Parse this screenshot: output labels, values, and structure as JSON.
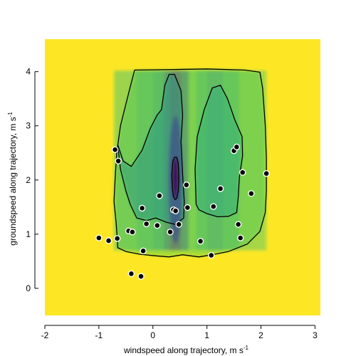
{
  "chart_data": {
    "type": "heatmap",
    "title": "",
    "xlabel": "windspeed along trajectory, m s",
    "xlabel_sup": "-1",
    "ylabel": "groundspeed along trajectory, m s",
    "ylabel_sup": "-1",
    "xlim": [
      -2,
      3.1
    ],
    "ylim": [
      -0.5,
      4.6
    ],
    "x_ticks": [
      -2,
      -1,
      0,
      1,
      2,
      3
    ],
    "y_ticks": [
      0,
      1,
      2,
      3,
      4
    ],
    "colormap": "viridis",
    "background_color": "#fde725",
    "contours": [
      {
        "level": "outer",
        "points": [
          [
            -0.34,
            4.03
          ],
          [
            0.4,
            4.04
          ],
          [
            1.0,
            4.05
          ],
          [
            1.7,
            4.03
          ],
          [
            1.98,
            3.99
          ],
          [
            2.03,
            3.7
          ],
          [
            2.08,
            3.0
          ],
          [
            2.1,
            2.4
          ],
          [
            2.1,
            1.8
          ],
          [
            2.08,
            1.4
          ],
          [
            1.98,
            1.05
          ],
          [
            1.75,
            0.82
          ],
          [
            1.4,
            0.68
          ],
          [
            1.1,
            0.62
          ],
          [
            0.85,
            0.58
          ],
          [
            0.55,
            0.62
          ],
          [
            0.3,
            0.58
          ],
          [
            0.05,
            0.6
          ],
          [
            -0.25,
            0.63
          ],
          [
            -0.5,
            0.68
          ],
          [
            -0.65,
            0.75
          ],
          [
            -0.66,
            0.9
          ],
          [
            -0.68,
            1.2
          ],
          [
            -0.72,
            1.6
          ],
          [
            -0.7,
            2.0
          ],
          [
            -0.67,
            2.5
          ],
          [
            -0.6,
            3.0
          ],
          [
            -0.45,
            3.6
          ],
          [
            -0.34,
            4.03
          ]
        ]
      },
      {
        "level": "left",
        "points": [
          [
            -0.65,
            2.65
          ],
          [
            -0.55,
            2.35
          ],
          [
            -0.4,
            2.25
          ],
          [
            -0.2,
            2.55
          ],
          [
            -0.05,
            2.95
          ],
          [
            0.08,
            3.2
          ],
          [
            0.16,
            3.3
          ],
          [
            0.22,
            3.75
          ],
          [
            0.3,
            3.95
          ],
          [
            0.4,
            3.95
          ],
          [
            0.52,
            3.65
          ],
          [
            0.55,
            3.2
          ],
          [
            0.52,
            2.7
          ],
          [
            0.55,
            2.1
          ],
          [
            0.58,
            1.6
          ],
          [
            0.57,
            1.3
          ],
          [
            0.42,
            1.18
          ],
          [
            0.25,
            1.22
          ],
          [
            0.05,
            1.3
          ],
          [
            -0.12,
            1.25
          ],
          [
            -0.3,
            1.3
          ],
          [
            -0.42,
            1.55
          ],
          [
            -0.5,
            1.8
          ],
          [
            -0.6,
            2.2
          ],
          [
            -0.65,
            2.65
          ]
        ]
      },
      {
        "level": "right",
        "points": [
          [
            0.8,
            1.55
          ],
          [
            0.78,
            2.2
          ],
          [
            0.82,
            2.8
          ],
          [
            0.95,
            3.3
          ],
          [
            1.1,
            3.7
          ],
          [
            1.25,
            3.75
          ],
          [
            1.38,
            3.5
          ],
          [
            1.52,
            3.1
          ],
          [
            1.65,
            2.8
          ],
          [
            1.66,
            2.45
          ],
          [
            1.6,
            2.05
          ],
          [
            1.58,
            1.7
          ],
          [
            1.55,
            1.4
          ],
          [
            1.4,
            1.33
          ],
          [
            1.2,
            1.32
          ],
          [
            1.0,
            1.38
          ],
          [
            0.85,
            1.45
          ],
          [
            0.8,
            1.55
          ]
        ]
      },
      {
        "level": "core",
        "points": [
          [
            0.38,
            1.7
          ],
          [
            0.36,
            1.85
          ],
          [
            0.35,
            2.1
          ],
          [
            0.37,
            2.35
          ],
          [
            0.4,
            2.42
          ],
          [
            0.44,
            2.42
          ],
          [
            0.47,
            2.3
          ],
          [
            0.48,
            2.0
          ],
          [
            0.47,
            1.8
          ],
          [
            0.44,
            1.66
          ],
          [
            0.41,
            1.64
          ],
          [
            0.38,
            1.7
          ]
        ]
      }
    ],
    "points": [
      {
        "x": -1.0,
        "y": 0.93
      },
      {
        "x": -0.82,
        "y": 0.88
      },
      {
        "x": -0.66,
        "y": 0.92
      },
      {
        "x": -0.7,
        "y": 2.56
      },
      {
        "x": -0.64,
        "y": 2.35
      },
      {
        "x": -0.45,
        "y": 1.06
      },
      {
        "x": -0.38,
        "y": 1.04
      },
      {
        "x": -0.4,
        "y": 0.27
      },
      {
        "x": -0.22,
        "y": 0.22
      },
      {
        "x": -0.2,
        "y": 1.48
      },
      {
        "x": -0.18,
        "y": 0.69
      },
      {
        "x": -0.12,
        "y": 1.19
      },
      {
        "x": 0.08,
        "y": 1.16
      },
      {
        "x": 0.12,
        "y": 1.71
      },
      {
        "x": 0.32,
        "y": 1.04
      },
      {
        "x": 0.38,
        "y": 1.45
      },
      {
        "x": 0.42,
        "y": 1.43
      },
      {
        "x": 0.48,
        "y": 1.18
      },
      {
        "x": 0.62,
        "y": 1.91
      },
      {
        "x": 0.64,
        "y": 1.49
      },
      {
        "x": 0.88,
        "y": 0.87
      },
      {
        "x": 1.08,
        "y": 0.61
      },
      {
        "x": 1.12,
        "y": 1.51
      },
      {
        "x": 1.25,
        "y": 1.84
      },
      {
        "x": 1.5,
        "y": 2.54
      },
      {
        "x": 1.55,
        "y": 2.61
      },
      {
        "x": 1.58,
        "y": 1.18
      },
      {
        "x": 1.62,
        "y": 0.93
      },
      {
        "x": 1.66,
        "y": 2.14
      },
      {
        "x": 1.82,
        "y": 1.75
      },
      {
        "x": 2.1,
        "y": 2.12
      }
    ]
  }
}
